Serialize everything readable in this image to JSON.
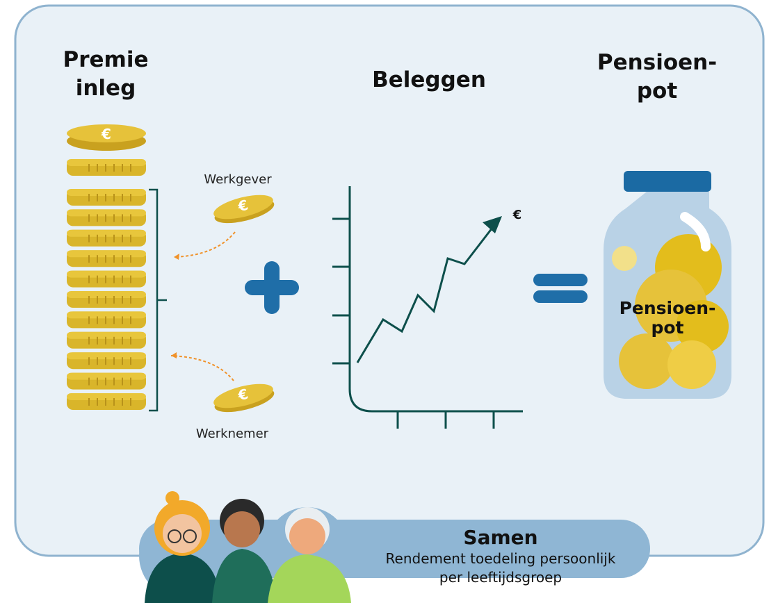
{
  "premie_inleg": {
    "title_lines": [
      "Premie",
      "inleg"
    ],
    "sources": [
      "Werkgever",
      "Werknemer"
    ]
  },
  "beleggen": {
    "title": "Beleggen",
    "currency": "€"
  },
  "pensioenpot": {
    "title_lines": [
      "Pensioen-",
      "pot"
    ],
    "jar_label_lines": [
      "Pensioen-",
      "pot"
    ]
  },
  "samen": {
    "title": "Samen",
    "description_lines": [
      "Rendement toedeling persoonlijk",
      "per leeftijdsgroep"
    ]
  }
}
